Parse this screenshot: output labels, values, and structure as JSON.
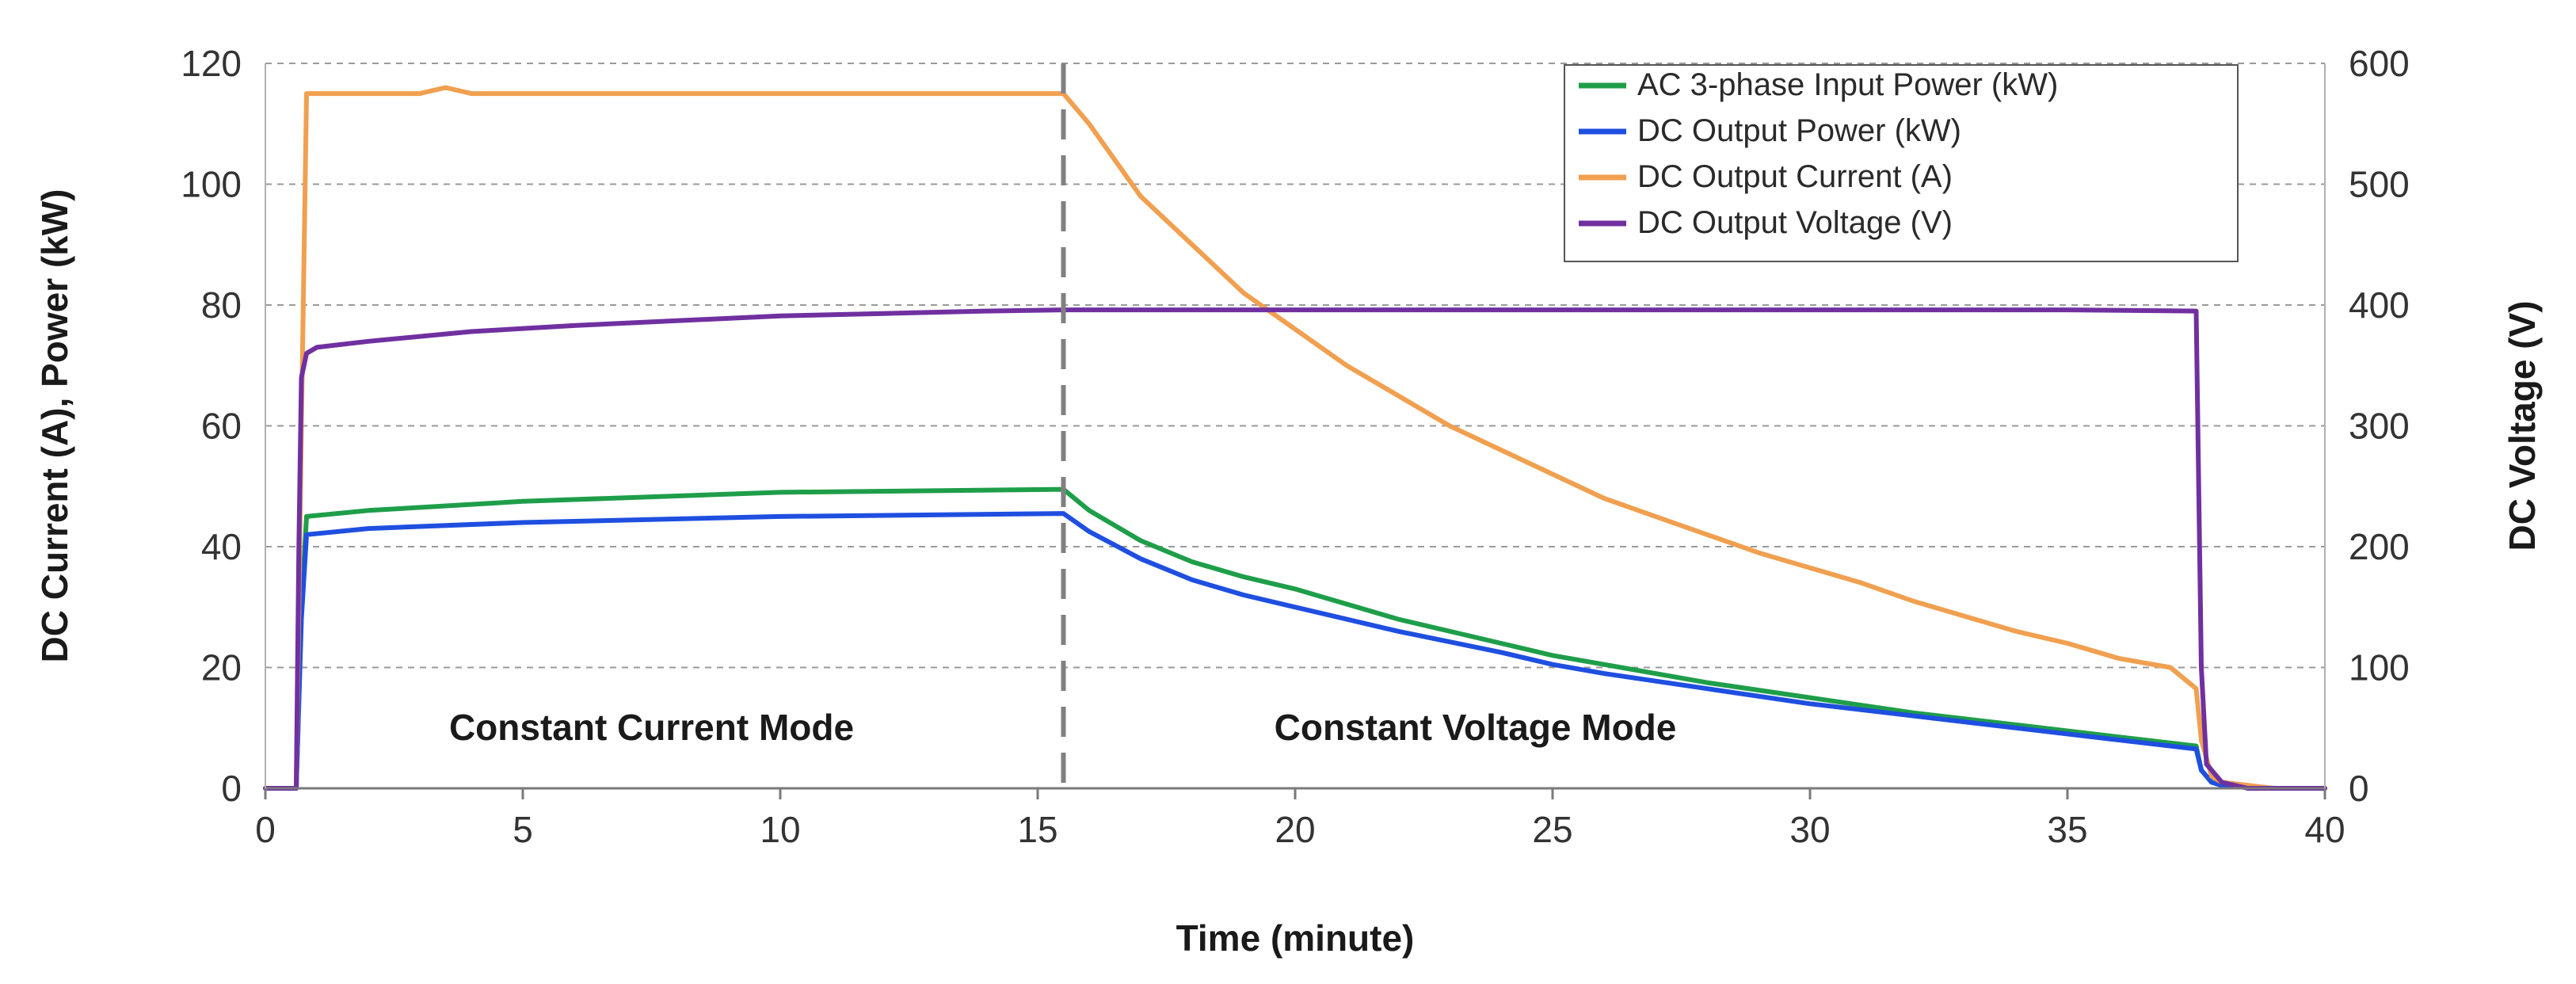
{
  "chart_data": {
    "type": "line",
    "xlabel": "Time (minute)",
    "ylabel_left": "DC Current (A), Power (kW)",
    "ylabel_right": "DC Voltage (V)",
    "xlim": [
      0,
      40
    ],
    "ylim_left": [
      0,
      120
    ],
    "ylim_right": [
      0,
      600
    ],
    "x_ticks": [
      0,
      5,
      10,
      15,
      20,
      25,
      30,
      35,
      40
    ],
    "y_left_ticks": [
      0,
      20,
      40,
      60,
      80,
      100,
      120
    ],
    "y_right_ticks": [
      0,
      100,
      200,
      300,
      400,
      500,
      600
    ],
    "grid": "horizontal dashed",
    "legend_position": "top-right",
    "mode_divider_x": 15.5,
    "annotations": [
      {
        "text": "Constant Current Mode",
        "x": 7.5,
        "y": 8
      },
      {
        "text": "Constant Voltage Mode",
        "x": 23.5,
        "y": 8
      }
    ],
    "series": [
      {
        "name": "AC 3-phase Input Power (kW)",
        "color": "#1f9e4a",
        "axis": "left",
        "x": [
          0,
          0.6,
          0.7,
          0.8,
          2,
          5,
          10,
          15.5,
          16,
          17,
          18,
          19,
          20,
          22,
          24,
          25,
          26,
          28,
          30,
          32,
          34,
          36,
          37.5,
          37.6,
          37.8,
          38,
          39,
          40
        ],
        "y": [
          0,
          0,
          30,
          45,
          46,
          47.5,
          49,
          49.5,
          46,
          41,
          37.5,
          35,
          33,
          28,
          24,
          22,
          20.5,
          17.5,
          15,
          12.5,
          10.5,
          8.5,
          7,
          3,
          1,
          0.5,
          0,
          0
        ]
      },
      {
        "name": "DC Output Power (kW)",
        "color": "#1f4fe0",
        "axis": "left",
        "x": [
          0,
          0.6,
          0.7,
          0.8,
          2,
          5,
          10,
          15.5,
          16,
          17,
          18,
          19,
          20,
          22,
          24,
          25,
          26,
          28,
          30,
          32,
          34,
          36,
          37.5,
          37.6,
          37.8,
          38,
          39,
          40
        ],
        "y": [
          0,
          0,
          28,
          42,
          43,
          44,
          45,
          45.5,
          42.5,
          38,
          34.5,
          32,
          30,
          26,
          22.5,
          20.5,
          19,
          16.5,
          14,
          12,
          10,
          8,
          6.5,
          3,
          1,
          0.5,
          0,
          0
        ]
      },
      {
        "name": "DC Output Current (A)",
        "color": "#f0a050",
        "axis": "left",
        "x": [
          0,
          0.6,
          0.7,
          0.8,
          1,
          2,
          3,
          3.5,
          4,
          5,
          10,
          15.5,
          16,
          17,
          18,
          19,
          20,
          21,
          22,
          23,
          24,
          25,
          26,
          27,
          28,
          29,
          30,
          31,
          32,
          33,
          34,
          35,
          36,
          37,
          37.5,
          37.6,
          37.8,
          38,
          39,
          40
        ],
        "y": [
          0,
          0,
          60,
          115,
          115,
          115,
          115,
          116,
          115,
          115,
          115,
          115,
          110,
          98,
          90,
          82,
          76,
          70,
          65,
          60,
          56,
          52,
          48,
          45,
          42,
          39,
          36.5,
          34,
          31,
          28.5,
          26,
          24,
          21.5,
          20,
          16.5,
          8,
          2,
          1,
          0,
          0
        ]
      },
      {
        "name": "DC Output Voltage (V)",
        "color": "#7030a0",
        "axis": "right",
        "x": [
          0,
          0.6,
          0.65,
          0.7,
          0.8,
          1,
          2,
          4,
          6,
          8,
          10,
          12,
          14,
          15.5,
          20,
          25,
          30,
          35,
          37.5,
          37.6,
          37.7,
          38,
          38.5,
          39,
          40
        ],
        "y": [
          0,
          0,
          200,
          340,
          360,
          365,
          370,
          378,
          383,
          387,
          391,
          393,
          395,
          396,
          396,
          396,
          396,
          396,
          395,
          100,
          20,
          5,
          0,
          0,
          0
        ]
      }
    ]
  }
}
